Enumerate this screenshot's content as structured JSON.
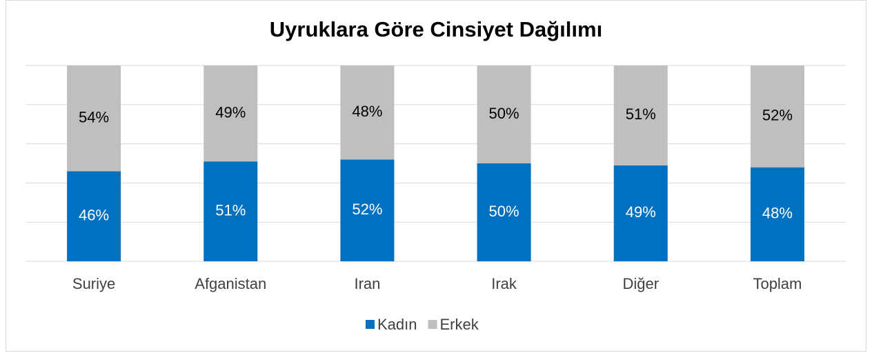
{
  "chart_data": {
    "type": "stacked_bar",
    "title": "Uyruklara Göre Cinsiyet Dağılımı",
    "categories": [
      "Suriye",
      "Afganistan",
      "Iran",
      "Irak",
      "Diğer",
      "Toplam"
    ],
    "series": [
      {
        "name": "Kadın",
        "color": "#0070c0",
        "values": [
          46,
          51,
          52,
          50,
          49,
          48
        ],
        "value_labels": [
          "46%",
          "51%",
          "52%",
          "50%",
          "49%",
          "48%"
        ],
        "label_color": "#ffffff"
      },
      {
        "name": "Erkek",
        "color": "#bfbfbf",
        "values": [
          54,
          49,
          48,
          50,
          51,
          52
        ],
        "value_labels": [
          "54%",
          "49%",
          "48%",
          "50%",
          "51%",
          "52%"
        ],
        "label_color": "#000000"
      }
    ],
    "ylim": [
      0,
      100
    ],
    "yticks": [
      0,
      20,
      40,
      60,
      80,
      100
    ],
    "grid": true,
    "legend": "bottom"
  }
}
